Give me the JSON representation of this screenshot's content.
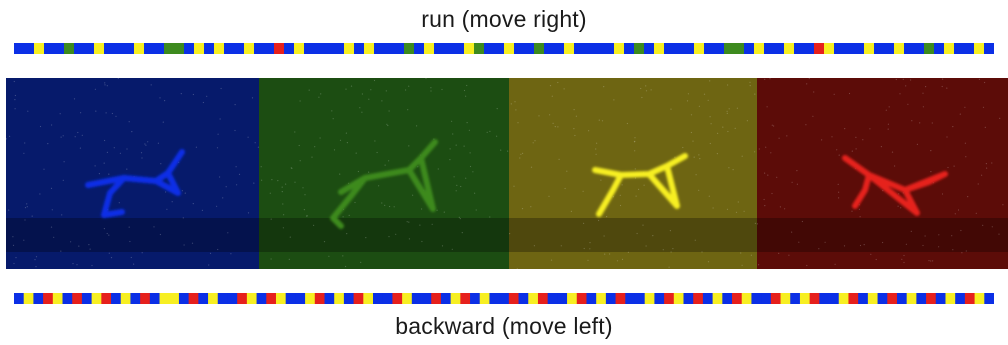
{
  "captions": {
    "top": "run (move right)",
    "bottom": "backward (move left)"
  },
  "palette": {
    "blue": "#0b2fe6",
    "green": "#3d8a1e",
    "yellow": "#f7ef22",
    "red": "#e6201c",
    "panel_blue": "#061a6b",
    "panel_green": "#1c4d12",
    "panel_yellow": "#6e6512",
    "panel_red": "#5c0c08"
  },
  "top_strip_pattern": [
    "blue",
    "blue",
    "yellow",
    "blue",
    "blue",
    "green",
    "blue",
    "blue",
    "yellow",
    "blue",
    "blue",
    "blue",
    "yellow",
    "blue",
    "blue",
    "green",
    "green",
    "blue",
    "yellow",
    "blue",
    "yellow",
    "blue",
    "blue",
    "yellow",
    "blue",
    "blue",
    "red",
    "blue",
    "yellow",
    "blue",
    "blue",
    "blue",
    "blue",
    "yellow",
    "blue",
    "yellow",
    "blue",
    "blue",
    "blue",
    "green",
    "blue",
    "yellow",
    "blue",
    "blue",
    "blue",
    "yellow",
    "green",
    "blue",
    "blue",
    "yellow",
    "blue",
    "blue",
    "green",
    "blue",
    "blue",
    "yellow",
    "blue",
    "blue",
    "blue",
    "blue",
    "yellow",
    "blue",
    "green",
    "blue",
    "yellow",
    "blue",
    "blue",
    "blue",
    "yellow",
    "blue",
    "blue",
    "green",
    "green",
    "blue",
    "yellow",
    "blue",
    "blue",
    "yellow",
    "blue",
    "blue",
    "red",
    "yellow",
    "blue",
    "blue",
    "blue",
    "yellow",
    "blue",
    "blue",
    "yellow",
    "blue",
    "blue",
    "green",
    "blue",
    "yellow",
    "blue",
    "blue",
    "yellow",
    "blue"
  ],
  "bottom_strip_pattern": [
    "blue",
    "yellow",
    "blue",
    "red",
    "yellow",
    "blue",
    "red",
    "blue",
    "yellow",
    "red",
    "blue",
    "yellow",
    "blue",
    "red",
    "blue",
    "yellow",
    "yellow",
    "blue",
    "red",
    "blue",
    "yellow",
    "blue",
    "blue",
    "red",
    "yellow",
    "blue",
    "red",
    "yellow",
    "blue",
    "blue",
    "yellow",
    "red",
    "blue",
    "yellow",
    "blue",
    "red",
    "yellow",
    "blue",
    "blue",
    "red",
    "yellow",
    "blue",
    "blue",
    "red",
    "blue",
    "yellow",
    "red",
    "blue",
    "yellow",
    "blue",
    "blue",
    "red",
    "blue",
    "yellow",
    "red",
    "blue",
    "blue",
    "yellow",
    "red",
    "blue",
    "yellow",
    "blue",
    "red",
    "blue",
    "blue",
    "yellow",
    "blue",
    "red",
    "yellow",
    "blue",
    "red",
    "blue",
    "yellow",
    "blue",
    "red",
    "yellow",
    "blue",
    "blue",
    "red",
    "yellow",
    "blue",
    "yellow",
    "red",
    "blue",
    "blue",
    "yellow",
    "red",
    "blue",
    "yellow",
    "blue",
    "red",
    "blue",
    "yellow",
    "blue",
    "red",
    "blue",
    "yellow",
    "blue",
    "red",
    "yellow",
    "blue"
  ],
  "panels": [
    {
      "name": "blue-cheetah-frame",
      "bg": "panel_blue",
      "figure": "blue",
      "pose": "crouch"
    },
    {
      "name": "green-cheetah-frame",
      "bg": "panel_green",
      "figure": "green",
      "pose": "stretch"
    },
    {
      "name": "yellow-cheetah-frame",
      "bg": "panel_yellow",
      "figure": "yellow",
      "pose": "gather"
    },
    {
      "name": "red-cheetah-frame",
      "bg": "panel_red",
      "figure": "red",
      "pose": "lean"
    }
  ]
}
